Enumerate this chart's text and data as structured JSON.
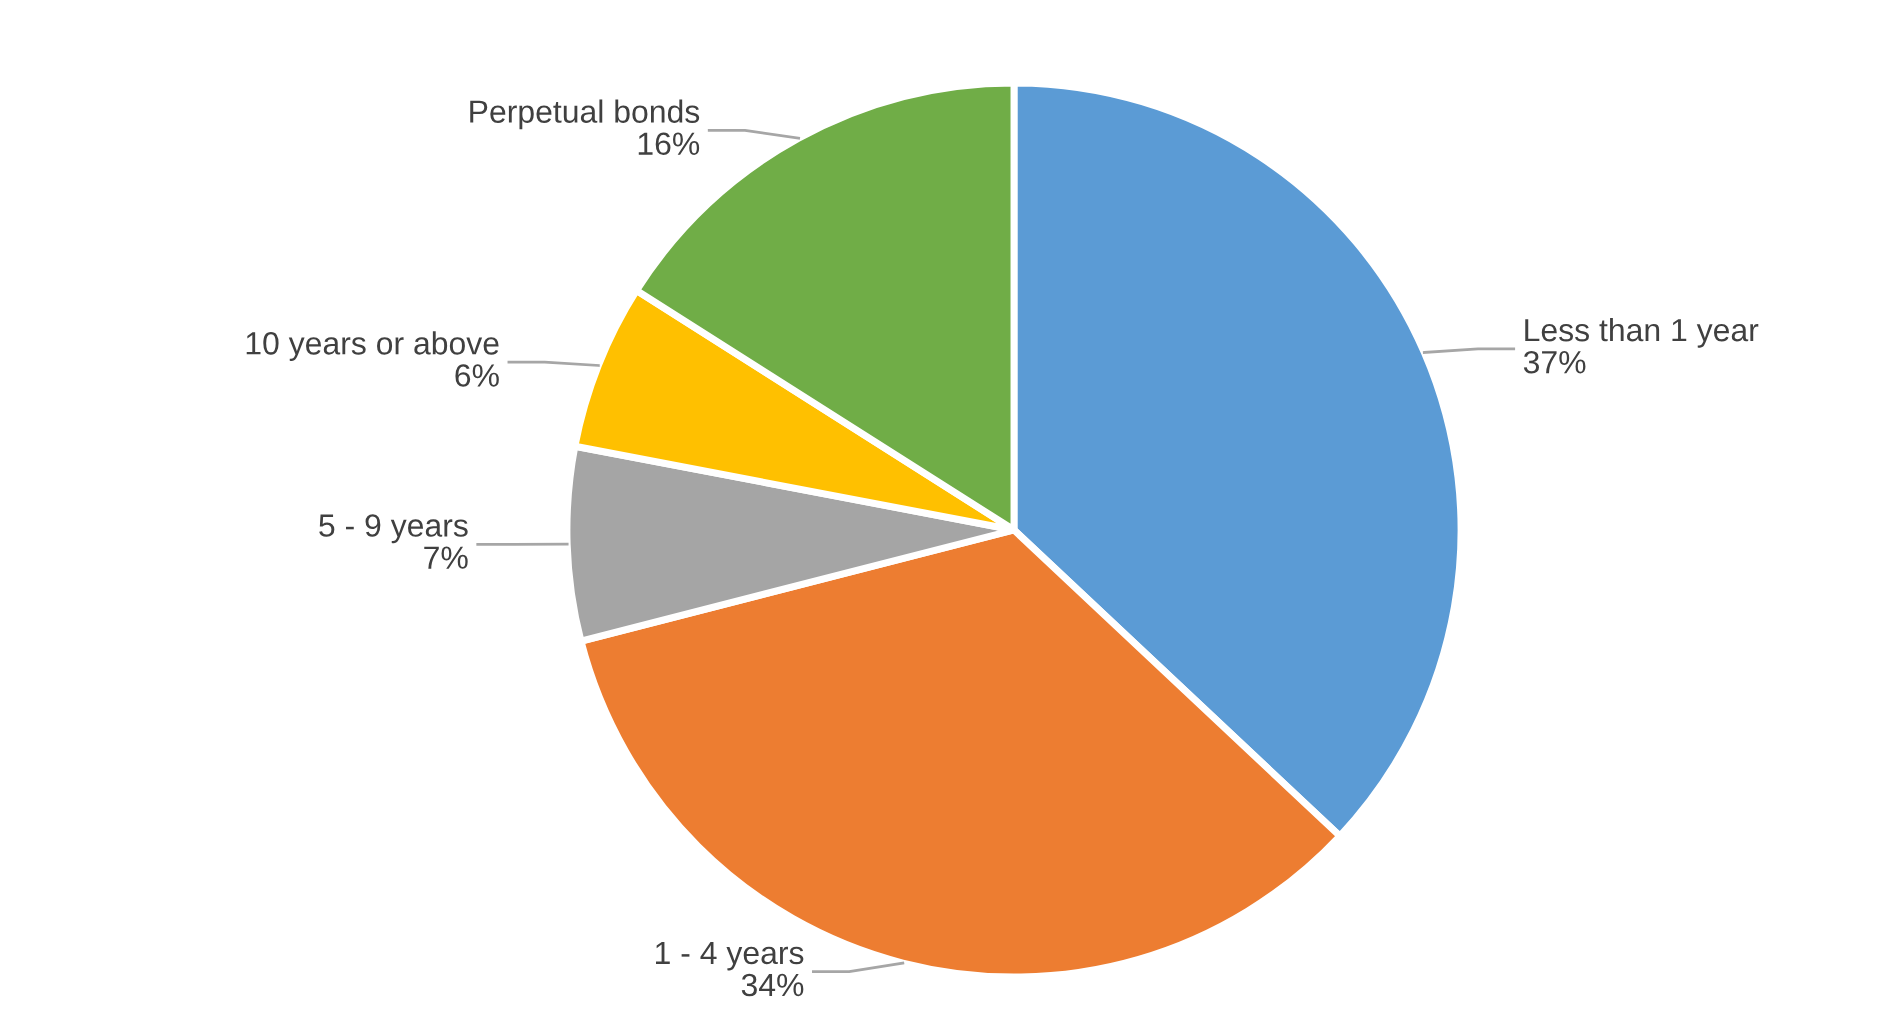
{
  "chart_data": {
    "type": "pie",
    "categories": [
      "Less than 1 year",
      "1 - 4 years",
      "5 - 9 years",
      "10 years or above",
      "Perpetual bonds"
    ],
    "values": [
      37,
      34,
      7,
      6,
      16
    ],
    "colors": [
      "#5b9bd5",
      "#ed7d31",
      "#a5a5a5",
      "#ffc000",
      "#70ad47"
    ],
    "value_labels": [
      "37%",
      "34%",
      "7%",
      "6%",
      "16%"
    ],
    "legend": false
  }
}
